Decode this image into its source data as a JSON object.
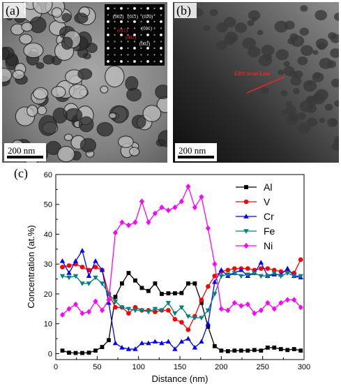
{
  "panels": {
    "a": {
      "letter": "(a)",
      "scale_bar": "200 nm",
      "saed": {
        "left_labels": [
          "(002)",
          "(011)",
          "(020)"
        ],
        "right_labels": [
          "(011)",
          "(002)"
        ],
        "red_labels": [
          "(011)",
          "(002)"
        ]
      }
    },
    "b": {
      "letter": "(b)",
      "scale_bar": "200 nm",
      "annotation": "EDS Scan Line",
      "annotation_color": "#ff2020"
    },
    "c": {
      "letter": "(c)"
    }
  },
  "chart_data": {
    "type": "line",
    "xlabel": "Distance (nm)",
    "ylabel": "Concentration (at.%)",
    "xlim": [
      0,
      300
    ],
    "ylim": [
      -2,
      60
    ],
    "xticks": [
      0,
      50,
      100,
      150,
      200,
      250,
      300
    ],
    "yticks": [
      0,
      10,
      20,
      30,
      40,
      50,
      60
    ],
    "grid": false,
    "legend_position": "top-right",
    "x": [
      8,
      16,
      24,
      32,
      40,
      48,
      56,
      64,
      72,
      80,
      88,
      96,
      104,
      112,
      120,
      128,
      136,
      144,
      152,
      160,
      168,
      176,
      184,
      192,
      200,
      208,
      216,
      224,
      232,
      240,
      248,
      256,
      264,
      272,
      280,
      288,
      296
    ],
    "series": [
      {
        "name": "Al",
        "color": "#000000",
        "marker": "square",
        "values": [
          1,
          0.3,
          0.2,
          0.2,
          0.3,
          1,
          2.2,
          4.5,
          19,
          23.5,
          27,
          24.5,
          22,
          21,
          23.5,
          20,
          20.2,
          20.2,
          20.3,
          23.5,
          23.5,
          17,
          9,
          2.5,
          1,
          0.8,
          1,
          1,
          1,
          1.2,
          1,
          2,
          2,
          1.5,
          1.2,
          1.5,
          1
        ]
      },
      {
        "name": "V",
        "color": "#ff0000",
        "marker": "circle",
        "values": [
          29,
          29.5,
          30,
          29,
          28,
          29,
          28,
          20,
          15.5,
          15.5,
          13.5,
          15.5,
          14.5,
          14.5,
          14,
          14.5,
          14.5,
          11.5,
          10.5,
          8,
          12.5,
          18,
          22.5,
          26,
          27.5,
          28,
          28.5,
          28.5,
          28.5,
          28,
          28.5,
          28.5,
          28,
          27.5,
          27.5,
          27,
          31.5
        ]
      },
      {
        "name": "Cr",
        "color": "#0000ff",
        "marker": "triangle-up",
        "values": [
          31,
          27,
          31,
          34.5,
          26,
          31,
          28,
          17,
          3.5,
          2,
          1.5,
          1.5,
          3.5,
          3.5,
          4,
          3.5,
          4,
          1.5,
          4,
          5,
          2,
          4,
          10,
          24,
          28,
          26,
          27,
          28,
          26,
          27,
          30.5,
          26,
          26.5,
          26.5,
          28.5,
          26,
          25.5
        ]
      },
      {
        "name": "Fe",
        "color": "#008080",
        "marker": "triangle-down",
        "values": [
          26,
          25.5,
          26,
          23.5,
          23.5,
          25.5,
          23.5,
          20,
          17.5,
          15.5,
          15,
          14.5,
          14.5,
          14,
          15,
          14.5,
          17,
          13.5,
          15.5,
          12.5,
          12,
          12,
          14.5,
          20,
          26,
          26.5,
          27,
          26,
          26.5,
          27,
          26,
          26,
          27,
          26,
          27,
          26,
          26
        ]
      },
      {
        "name": "Ni",
        "color": "#ff00ff",
        "marker": "diamond",
        "values": [
          13,
          15,
          16.5,
          13.5,
          14,
          17.5,
          14.5,
          18,
          40.5,
          44,
          43,
          44,
          51,
          44,
          47,
          49,
          48,
          49,
          51,
          56,
          49,
          52.5,
          42,
          30,
          15,
          14.5,
          17,
          16,
          16.5,
          13.5,
          14.5,
          17,
          15,
          17,
          18,
          18,
          15.5
        ]
      }
    ]
  }
}
